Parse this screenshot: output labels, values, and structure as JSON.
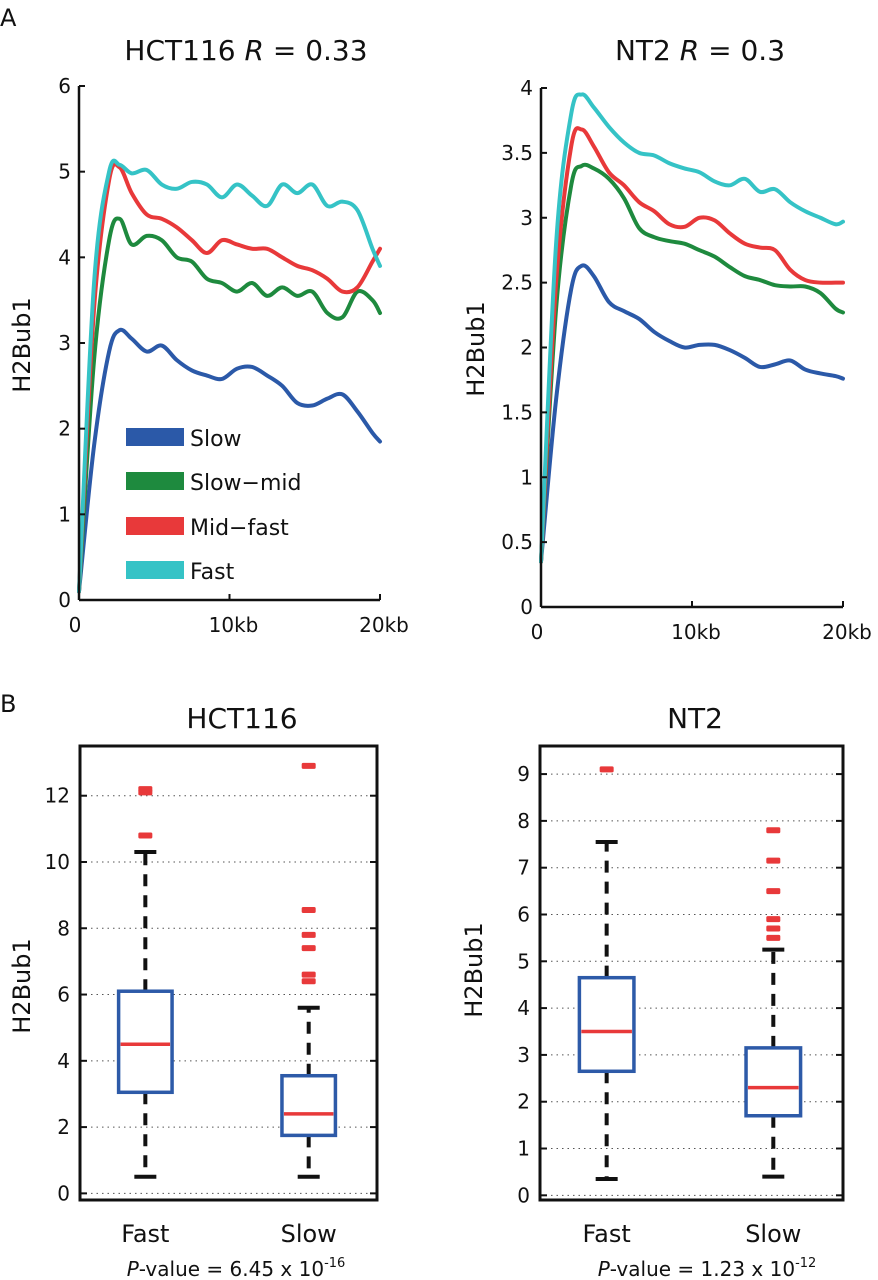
{
  "panels": {
    "a": "A",
    "b": "B"
  },
  "colors": {
    "Slow": "#2b59a8",
    "Slow-mid": "#1e8a3e",
    "Mid-fast": "#e8393a",
    "Fast": "#35c3c6",
    "box": "#2d5aa8",
    "median": "#e8393a",
    "outlier": "#e8393a"
  },
  "legend": {
    "items": [
      "Slow",
      "Slow−mid",
      "Mid−fast",
      "Fast"
    ]
  },
  "chart_data": [
    {
      "id": "a1",
      "type": "line",
      "title": "HCT116",
      "title_stat_label": "R",
      "title_stat_value": "= 0.33",
      "xlabel": "",
      "ylabel": "H2Bub1",
      "xlim": [
        0,
        20
      ],
      "ylim": [
        0,
        6
      ],
      "xticks": [
        0,
        10,
        20
      ],
      "xtick_labels": [
        "0",
        "10kb",
        "20kb"
      ],
      "yticks": [
        0,
        1,
        2,
        3,
        4,
        5,
        6
      ],
      "ytick_labels": [
        "0",
        "1",
        "2",
        "3",
        "4",
        "5",
        "6"
      ],
      "x": [
        0,
        1,
        2,
        2.7,
        3.5,
        4.5,
        5.5,
        6.5,
        7.5,
        8.5,
        9.5,
        10.5,
        11.5,
        12.5,
        13.5,
        14.5,
        15.5,
        16.5,
        17.5,
        18.5,
        19.5,
        20
      ],
      "series": [
        {
          "name": "Slow",
          "key": "Slow",
          "values": [
            0.1,
            1.8,
            2.9,
            3.15,
            3.05,
            2.9,
            2.97,
            2.8,
            2.68,
            2.62,
            2.58,
            2.7,
            2.72,
            2.62,
            2.5,
            2.3,
            2.27,
            2.35,
            2.4,
            2.2,
            1.95,
            1.85
          ]
        },
        {
          "name": "Slow-mid",
          "key": "Slow-mid",
          "values": [
            0.1,
            2.8,
            4.2,
            4.45,
            4.15,
            4.25,
            4.2,
            4.0,
            3.95,
            3.75,
            3.7,
            3.6,
            3.7,
            3.55,
            3.65,
            3.55,
            3.6,
            3.35,
            3.3,
            3.6,
            3.5,
            3.35
          ]
        },
        {
          "name": "Mid-fast",
          "key": "Mid-fast",
          "values": [
            0.1,
            3.4,
            4.9,
            5.05,
            4.75,
            4.5,
            4.45,
            4.35,
            4.2,
            4.05,
            4.2,
            4.15,
            4.1,
            4.1,
            4.0,
            3.9,
            3.85,
            3.75,
            3.6,
            3.65,
            3.95,
            4.1
          ]
        },
        {
          "name": "Fast",
          "key": "Fast",
          "values": [
            0.1,
            3.7,
            5.0,
            5.08,
            4.98,
            5.02,
            4.85,
            4.8,
            4.88,
            4.85,
            4.7,
            4.85,
            4.72,
            4.6,
            4.85,
            4.75,
            4.85,
            4.6,
            4.65,
            4.55,
            4.1,
            3.9
          ]
        }
      ]
    },
    {
      "id": "a2",
      "type": "line",
      "title": "NT2",
      "title_stat_label": "R",
      "title_stat_value": "= 0.3",
      "xlabel": "",
      "ylabel": "H2Bub1",
      "xlim": [
        0,
        20
      ],
      "ylim": [
        0,
        4
      ],
      "xticks": [
        0,
        10,
        20
      ],
      "xtick_labels": [
        "0",
        "10kb",
        "20kb"
      ],
      "yticks": [
        0,
        0.5,
        1,
        1.5,
        2,
        2.5,
        3,
        3.5,
        4
      ],
      "ytick_labels": [
        "0",
        "0.5",
        "1",
        "1.5",
        "2",
        "2.5",
        "3",
        "3.5",
        "4"
      ],
      "x": [
        0,
        1,
        2,
        2.7,
        3.5,
        4.5,
        5.5,
        6.5,
        7.5,
        8.5,
        9.5,
        10.5,
        11.5,
        12.5,
        13.5,
        14.5,
        15.5,
        16.5,
        17.5,
        18.5,
        19.5,
        20
      ],
      "series": [
        {
          "name": "Slow",
          "key": "Slow",
          "values": [
            0.35,
            1.6,
            2.45,
            2.63,
            2.55,
            2.35,
            2.28,
            2.22,
            2.12,
            2.05,
            2.0,
            2.02,
            2.02,
            1.98,
            1.92,
            1.85,
            1.87,
            1.9,
            1.83,
            1.8,
            1.78,
            1.76
          ]
        },
        {
          "name": "Slow-mid",
          "key": "Slow-mid",
          "values": [
            0.35,
            2.3,
            3.25,
            3.4,
            3.38,
            3.3,
            3.15,
            2.92,
            2.85,
            2.82,
            2.8,
            2.75,
            2.7,
            2.62,
            2.55,
            2.52,
            2.48,
            2.47,
            2.47,
            2.42,
            2.3,
            2.27
          ]
        },
        {
          "name": "Mid-fast",
          "key": "Mid-fast",
          "values": [
            0.35,
            2.5,
            3.55,
            3.68,
            3.55,
            3.35,
            3.25,
            3.12,
            3.05,
            2.95,
            2.93,
            3.0,
            2.98,
            2.88,
            2.8,
            2.77,
            2.75,
            2.6,
            2.52,
            2.5,
            2.5,
            2.5
          ]
        },
        {
          "name": "Fast",
          "key": "Fast",
          "values": [
            0.35,
            2.8,
            3.8,
            3.95,
            3.85,
            3.7,
            3.58,
            3.5,
            3.48,
            3.42,
            3.38,
            3.35,
            3.28,
            3.25,
            3.3,
            3.2,
            3.22,
            3.12,
            3.05,
            3.0,
            2.95,
            2.97
          ]
        }
      ]
    },
    {
      "id": "b1",
      "type": "box",
      "title": "HCT116",
      "ylabel": "H2Bub1",
      "ylim": [
        -0.2,
        13.5
      ],
      "yticks": [
        0,
        2,
        4,
        6,
        8,
        10,
        12
      ],
      "ytick_labels": [
        "0",
        "2",
        "4",
        "6",
        "8",
        "10",
        "12"
      ],
      "categories": [
        "Fast",
        "Slow"
      ],
      "boxes": [
        {
          "category": "Fast",
          "whisker_low": 0.5,
          "q1": 3.05,
          "median": 4.5,
          "q3": 6.1,
          "whisker_high": 10.3,
          "outliers": [
            10.8,
            12.1,
            12.2
          ]
        },
        {
          "category": "Slow",
          "whisker_low": 0.5,
          "q1": 1.75,
          "median": 2.4,
          "q3": 3.55,
          "whisker_high": 5.6,
          "outliers": [
            6.4,
            6.6,
            7.4,
            7.8,
            8.55,
            12.9
          ]
        }
      ],
      "pvalue": {
        "label": "P",
        "text": "-value = 6.45 x 10",
        "exponent": "-16"
      }
    },
    {
      "id": "b2",
      "type": "box",
      "title": "NT2",
      "ylabel": "H2Bub1",
      "ylim": [
        -0.1,
        9.6
      ],
      "yticks": [
        0,
        1,
        2,
        3,
        4,
        5,
        6,
        7,
        8,
        9
      ],
      "ytick_labels": [
        "0",
        "1",
        "2",
        "3",
        "4",
        "5",
        "6",
        "7",
        "8",
        "9"
      ],
      "categories": [
        "Fast",
        "Slow"
      ],
      "boxes": [
        {
          "category": "Fast",
          "whisker_low": 0.35,
          "q1": 2.65,
          "median": 3.5,
          "q3": 4.65,
          "whisker_high": 7.55,
          "outliers": [
            9.1
          ]
        },
        {
          "category": "Slow",
          "whisker_low": 0.4,
          "q1": 1.7,
          "median": 2.3,
          "q3": 3.15,
          "whisker_high": 5.25,
          "outliers": [
            5.5,
            5.7,
            5.9,
            6.5,
            7.15,
            7.8
          ]
        }
      ],
      "pvalue": {
        "label": "P",
        "text": "-value = 1.23 x 10",
        "exponent": "-12"
      }
    }
  ]
}
